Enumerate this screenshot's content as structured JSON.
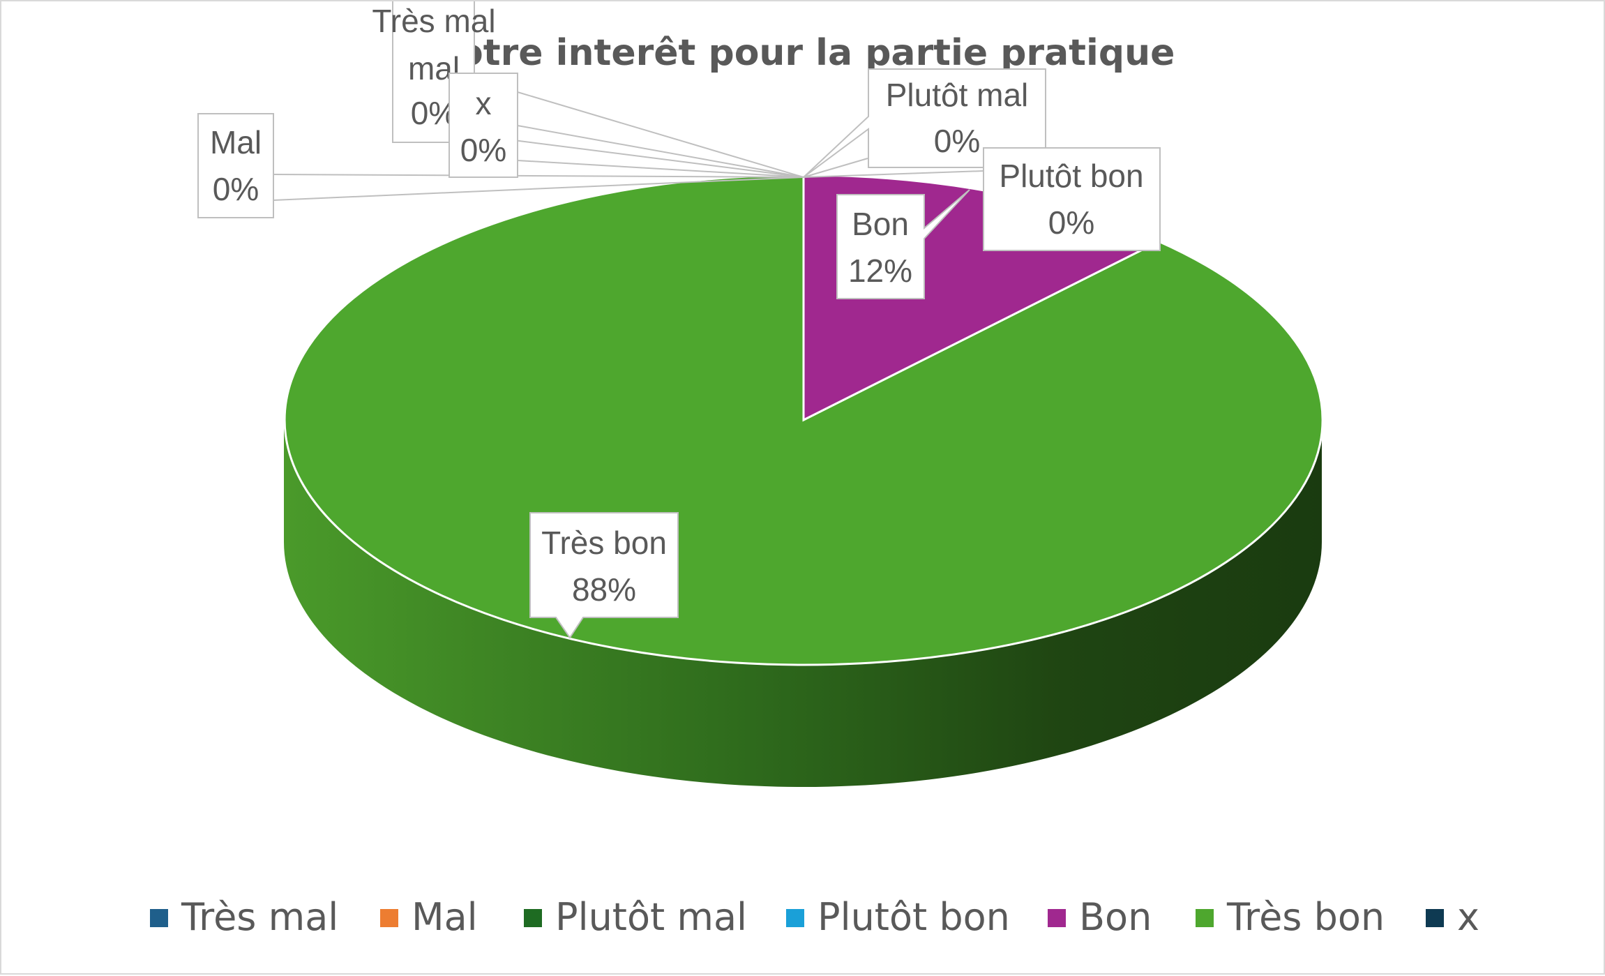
{
  "chart_data": {
    "type": "pie",
    "title": "Votre interêt pour la partie pratique",
    "categories": [
      "Très mal",
      "Mal",
      "Plutôt mal",
      "Plutôt bon",
      "Bon",
      "Très bon",
      "x"
    ],
    "values": [
      0,
      0,
      0,
      0,
      12,
      88,
      0
    ],
    "data_labels": [
      "0%",
      "0%",
      "0%",
      "0%",
      "12%",
      "88%",
      "0%"
    ],
    "colors": [
      "#1f5f8b",
      "#ed7d31",
      "#1e6b22",
      "#1aa0d8",
      "#a0288f",
      "#4ea72e",
      "#0e3a52"
    ],
    "legend_position": "bottom",
    "style": "3d-pie"
  }
}
